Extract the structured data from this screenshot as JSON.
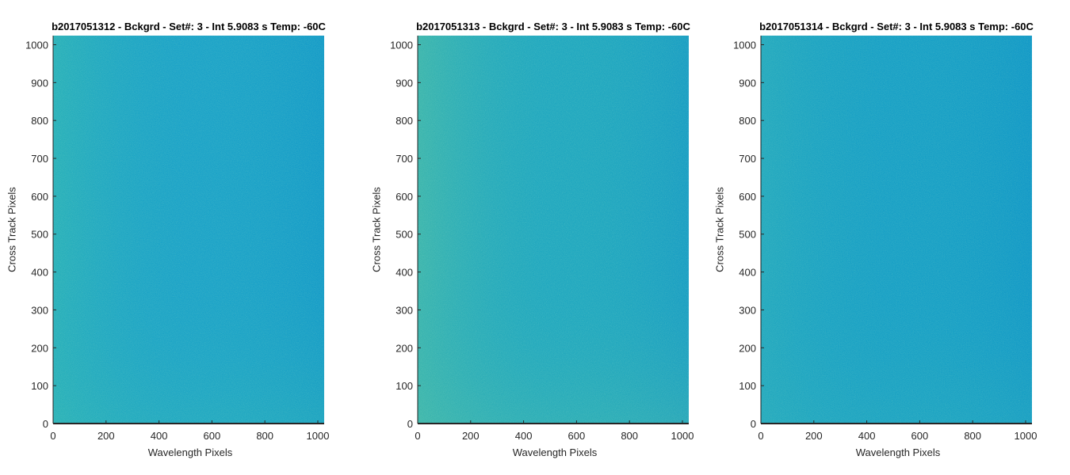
{
  "chart_data": [
    {
      "type": "heatmap",
      "title": "b2017051312 - Bckgrd - Set#: 3 - Int 5.9083 s Temp: -60C",
      "xlabel": "Wavelength Pixels",
      "ylabel": "Cross Track Pixels",
      "xlim": [
        0,
        1024
      ],
      "ylim": [
        0,
        1024
      ],
      "xticks": [
        0,
        200,
        400,
        600,
        800,
        1000
      ],
      "yticks": [
        0,
        100,
        200,
        300,
        400,
        500,
        600,
        700,
        800,
        900,
        1000
      ],
      "colors": {
        "base": "#1aa2c8",
        "warm": "#2db5b5",
        "cool": "#0e95c8"
      },
      "grid": false
    },
    {
      "type": "heatmap",
      "title": "b2017051313 - Bckgrd - Set#: 3 - Int 5.9083 s Temp: -60C",
      "xlabel": "Wavelength Pixels",
      "ylabel": "Cross Track Pixels",
      "xlim": [
        0,
        1024
      ],
      "ylim": [
        0,
        1024
      ],
      "xticks": [
        0,
        200,
        400,
        600,
        800,
        1000
      ],
      "yticks": [
        0,
        100,
        200,
        300,
        400,
        500,
        600,
        700,
        800,
        900,
        1000
      ],
      "colors": {
        "base": "#1fa7c0",
        "warm": "#45baa8",
        "cool": "#1396c6"
      },
      "grid": false
    },
    {
      "type": "heatmap",
      "title": "b2017051314 - Bckgrd - Set#: 3 - Int 5.9083 s Temp: -60C",
      "xlabel": "Wavelength Pixels",
      "ylabel": "Cross Track Pixels",
      "xlim": [
        0,
        1024
      ],
      "ylim": [
        0,
        1024
      ],
      "xticks": [
        0,
        200,
        400,
        600,
        800,
        1000
      ],
      "yticks": [
        0,
        100,
        200,
        300,
        400,
        500,
        600,
        700,
        800,
        900,
        1000
      ],
      "colors": {
        "base": "#169fc6",
        "warm": "#27acbc",
        "cool": "#0c93c8"
      },
      "grid": false
    }
  ]
}
